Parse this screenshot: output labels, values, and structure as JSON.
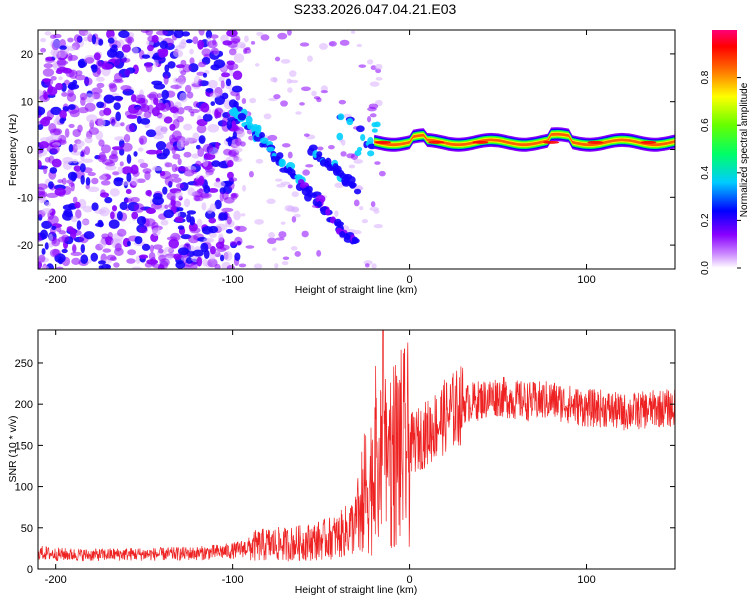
{
  "title": "S233.2026.047.04.21.E03",
  "chart_data": [
    {
      "type": "heatmap",
      "title": "",
      "xlabel": "Height of straight line (km)",
      "ylabel": "Frequency (Hz)",
      "xlim": [
        -210,
        150
      ],
      "ylim": [
        -25,
        25
      ],
      "x_ticks": [
        -200,
        -100,
        0,
        100
      ],
      "y_ticks": [
        -20,
        -10,
        0,
        10,
        20
      ],
      "colorbar": {
        "label": "Normalized spectral amplitude",
        "range": [
          0.0,
          1.0
        ],
        "ticks": [
          0.0,
          0.2,
          0.4,
          0.6,
          0.8
        ],
        "tick_labels": [
          "0.0",
          "0.2",
          "0.4",
          "0.6",
          "0.8"
        ],
        "colormap": [
          "#ffffff",
          "#8800ff",
          "#0000ff",
          "#00ffff",
          "#00ff00",
          "#ffff00",
          "#ff0000",
          "#ff0088"
        ]
      },
      "features": {
        "noise_region_x": [
          -210,
          -95
        ],
        "diagonal_streak": {
          "x": [
            -100,
            -30
          ],
          "freq": [
            9,
            -20
          ]
        },
        "second_streak": {
          "x": [
            -55,
            -30
          ],
          "freq": [
            0,
            -8
          ]
        },
        "narrowband_line": {
          "x": [
            -20,
            150
          ],
          "freq": 1.5,
          "amplitude_peak": 0.95
        }
      }
    },
    {
      "type": "line",
      "title": "",
      "xlabel": "Height of straight line (km)",
      "ylabel": "SNR (10 * v/v)",
      "xlim": [
        -210,
        150
      ],
      "ylim": [
        0,
        290
      ],
      "x_ticks": [
        -200,
        -100,
        0,
        100
      ],
      "y_ticks": [
        0,
        50,
        100,
        150,
        200,
        250
      ],
      "color": "#ee2222",
      "series": [
        {
          "name": "SNR",
          "x": [
            -210,
            -200,
            -180,
            -160,
            -140,
            -120,
            -100,
            -90,
            -80,
            -70,
            -60,
            -50,
            -40,
            -30,
            -25,
            -20,
            -15,
            -10,
            -5,
            0,
            10,
            20,
            30,
            40,
            50,
            60,
            70,
            80,
            90,
            100,
            110,
            120,
            130,
            140,
            150
          ],
          "values": [
            20,
            18,
            17,
            18,
            18,
            19,
            22,
            27,
            30,
            30,
            32,
            35,
            40,
            55,
            95,
            110,
            120,
            140,
            145,
            150,
            165,
            185,
            200,
            205,
            210,
            205,
            203,
            205,
            200,
            195,
            195,
            190,
            192,
            195,
            195
          ]
        }
      ],
      "annotations": {
        "spike_x": -15,
        "spike_value": 290
      }
    }
  ]
}
